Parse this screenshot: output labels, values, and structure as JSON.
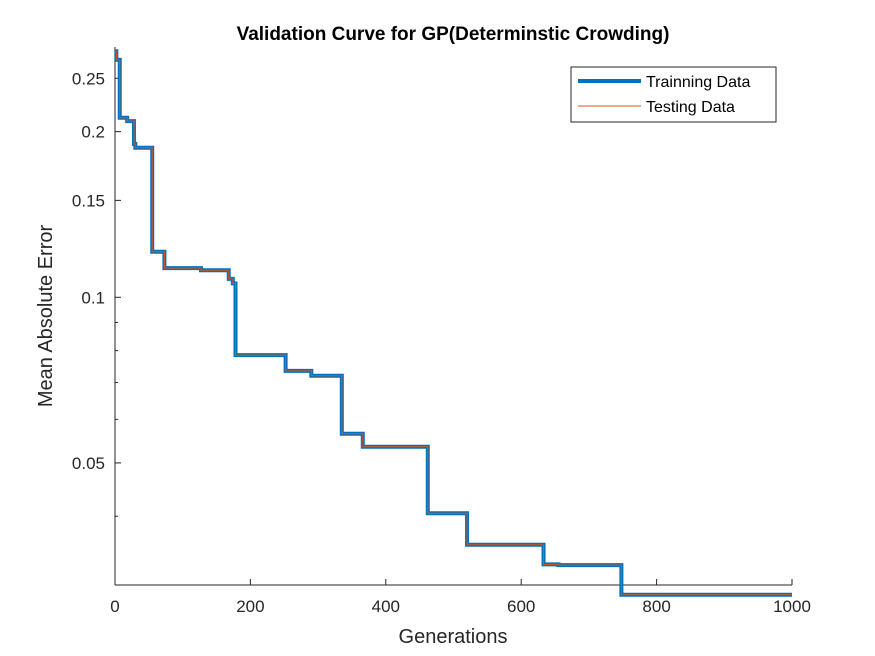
{
  "chart_data": {
    "type": "line",
    "title": "Validation Curve for GP(Determinstic Crowding)",
    "xlabel": "Generations",
    "ylabel": "Mean Absolute Error",
    "xlim": [
      0,
      1000
    ],
    "ylim": [
      0.03,
      0.285
    ],
    "yscale": "log",
    "grid": false,
    "legend_position": "top-right",
    "x_ticks": [
      0,
      200,
      400,
      600,
      800,
      1000
    ],
    "x_tick_labels": [
      "0",
      "200",
      "400",
      "600",
      "800",
      "1000"
    ],
    "y_ticks": [
      0.05,
      0.1,
      0.15,
      0.2,
      0.25
    ],
    "y_tick_labels": [
      "0.05",
      "0.1",
      "0.15",
      "0.2",
      "0.25"
    ],
    "y_minor_ticks": [
      0.03,
      0.04,
      0.06,
      0.07,
      0.08,
      0.09
    ],
    "series": [
      {
        "name": "Trainning Data",
        "color": "#0072BD",
        "line_width": "thick",
        "step": true,
        "x": [
          0,
          2,
          7,
          18,
          28,
          30,
          52,
          55,
          70,
          73,
          123,
          127,
          165,
          168,
          174,
          178,
          248,
          252,
          287,
          290,
          331,
          335,
          363,
          366,
          458,
          462,
          517,
          520,
          630,
          633,
          652,
          655,
          745,
          748,
          1000
        ],
        "y": [
          0.28,
          0.27,
          0.212,
          0.209,
          0.19,
          0.187,
          0.187,
          0.121,
          0.121,
          0.113,
          0.113,
          0.112,
          0.112,
          0.108,
          0.106,
          0.0785,
          0.0785,
          0.0735,
          0.0735,
          0.072,
          0.072,
          0.0565,
          0.0565,
          0.0535,
          0.0535,
          0.0405,
          0.0405,
          0.0355,
          0.0355,
          0.0327,
          0.0327,
          0.0326,
          0.0326,
          0.0288,
          0.0288
        ]
      },
      {
        "name": "Testing Data",
        "color": "#D95319",
        "line_width": "thin",
        "step": true,
        "x": [
          0,
          2,
          7,
          18,
          28,
          30,
          52,
          55,
          70,
          73,
          123,
          127,
          165,
          168,
          174,
          178,
          248,
          252,
          287,
          290,
          331,
          335,
          363,
          366,
          458,
          462,
          517,
          520,
          630,
          633,
          652,
          655,
          745,
          748,
          1000
        ],
        "y": [
          0.28,
          0.27,
          0.212,
          0.209,
          0.19,
          0.187,
          0.187,
          0.121,
          0.121,
          0.113,
          0.113,
          0.112,
          0.112,
          0.108,
          0.106,
          0.0785,
          0.0785,
          0.0735,
          0.0735,
          0.072,
          0.072,
          0.0565,
          0.0565,
          0.0535,
          0.0535,
          0.0405,
          0.0405,
          0.0355,
          0.0355,
          0.0327,
          0.0327,
          0.0326,
          0.0326,
          0.0288,
          0.0288
        ]
      }
    ]
  }
}
